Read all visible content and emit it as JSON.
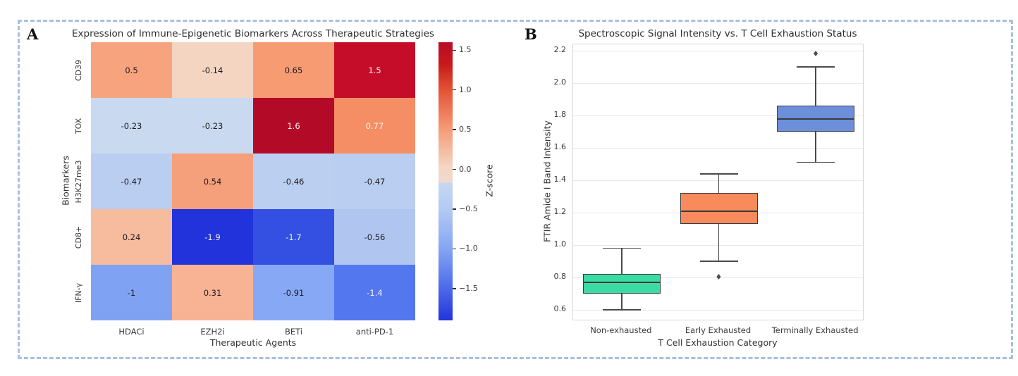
{
  "border_color": "#a9bfde",
  "panelA": {
    "label": "A",
    "title": "Expression of Immune-Epigenetic Biomarkers Across Therapeutic Strategies",
    "xlabel": "Therapeutic Agents",
    "ylabel": "Biomarkers",
    "colorbar_label": "Z-score"
  },
  "panelB": {
    "label": "B",
    "title": "Spectroscopic Signal Intensity vs. T Cell Exhaustion Status",
    "xlabel": "T Cell Exhaustion Category",
    "ylabel": "FTIR Amide I Band Intensity"
  },
  "chart_data": [
    {
      "type": "heatmap",
      "title": "Expression of Immune-Epigenetic Biomarkers Across Therapeutic Strategies",
      "xlabel": "Therapeutic Agents",
      "ylabel": "Biomarkers",
      "columns": [
        "HDACi",
        "EZH2i",
        "BETi",
        "anti-PD-1"
      ],
      "rows": [
        "CD39",
        "TOX",
        "H3K27me3",
        "CD8+",
        "IFN-γ"
      ],
      "values": [
        [
          0.5,
          -0.14,
          0.65,
          1.5
        ],
        [
          -0.23,
          -0.23,
          1.6,
          0.77
        ],
        [
          -0.47,
          0.54,
          -0.46,
          -0.47
        ],
        [
          0.24,
          -1.9,
          -1.7,
          -0.56
        ],
        [
          -1,
          0.31,
          -0.91,
          -1.4
        ]
      ],
      "value_labels": [
        [
          "0.5",
          "-0.14",
          "0.65",
          "1.5"
        ],
        [
          "-0.23",
          "-0.23",
          "1.6",
          "0.77"
        ],
        [
          "-0.47",
          "0.54",
          "-0.46",
          "-0.47"
        ],
        [
          "0.24",
          "-1.9",
          "-1.7",
          "-0.56"
        ],
        [
          "-1",
          "0.31",
          "-0.91",
          "-1.4"
        ]
      ],
      "cell_colors": [
        [
          "#f7a37d",
          "#f3d5c2",
          "#f79b72",
          "#c50d29"
        ],
        [
          "#c9d9f0",
          "#c9d9f0",
          "#b30b27",
          "#f58e64"
        ],
        [
          "#bacef1",
          "#f6a07b",
          "#bbcff1",
          "#bacef1"
        ],
        [
          "#f7bb9e",
          "#2233db",
          "#3350e2",
          "#b0c6f0"
        ],
        [
          "#7fa2f3",
          "#f8b294",
          "#87a8f4",
          "#5377ee"
        ]
      ],
      "cell_text_colors": [
        [
          "#1c1c1c",
          "#1c1c1c",
          "#1c1c1c",
          "#f2f2f2"
        ],
        [
          "#1c1c1c",
          "#1c1c1c",
          "#f2f2f2",
          "#f2f2f2"
        ],
        [
          "#1c1c1c",
          "#1c1c1c",
          "#1c1c1c",
          "#1c1c1c"
        ],
        [
          "#1c1c1c",
          "#f2f2f2",
          "#f2f2f2",
          "#1c1c1c"
        ],
        [
          "#1c1c1c",
          "#1c1c1c",
          "#1c1c1c",
          "#f2f2f2"
        ]
      ],
      "colorbar": {
        "label": "Z-score",
        "tick_labels": [
          "1.5",
          "1.0",
          "0.5",
          "0.0",
          "−0.5",
          "−1.0",
          "−1.5"
        ],
        "tick_values": [
          1.5,
          1.0,
          0.5,
          0.0,
          -0.5,
          -1.0,
          -1.5
        ],
        "vmin": -1.9,
        "vmax": 1.6,
        "gradient": [
          [
            0,
            "#b70c26"
          ],
          [
            8,
            "#c81a1b"
          ],
          [
            17,
            "#e25335"
          ],
          [
            31,
            "#f49a76"
          ],
          [
            45,
            "#f3d6c4"
          ],
          [
            50.4,
            "#f0d9cc"
          ],
          [
            50.6,
            "#c6d7f2"
          ],
          [
            60,
            "#b4caf3"
          ],
          [
            74,
            "#85a6f3"
          ],
          [
            88,
            "#4d6cea"
          ],
          [
            100,
            "#2333da"
          ]
        ]
      }
    },
    {
      "type": "boxplot",
      "title": "Spectroscopic Signal Intensity vs. T Cell Exhaustion Status",
      "xlabel": "T Cell Exhaustion Category",
      "ylabel": "FTIR Amide I Band Intensity",
      "categories": [
        "Non-exhausted",
        "Early Exhausted",
        "Terminally Exhausted"
      ],
      "ytick_labels": [
        "0.6",
        "0.8",
        "1.0",
        "1.2",
        "1.4",
        "1.6",
        "1.8",
        "2.0",
        "2.2"
      ],
      "ytick_values": [
        0.6,
        0.8,
        1.0,
        1.2,
        1.4,
        1.6,
        1.8,
        2.0,
        2.2
      ],
      "ylim": [
        0.53,
        2.24
      ],
      "grid": true,
      "boxes": [
        {
          "category": "Non-exhausted",
          "fill_color": "#3adca4",
          "whisker_low": 0.6,
          "q1": 0.7,
          "median": 0.77,
          "q3": 0.82,
          "whisker_high": 0.98,
          "outliers": []
        },
        {
          "category": "Early Exhausted",
          "fill_color": "#f88a5c",
          "whisker_low": 0.9,
          "q1": 1.13,
          "median": 1.21,
          "q3": 1.32,
          "whisker_high": 1.44,
          "outliers": [
            0.8
          ]
        },
        {
          "category": "Terminally Exhausted",
          "fill_color": "#6c8fdb",
          "whisker_low": 1.51,
          "q1": 1.7,
          "median": 1.78,
          "q3": 1.86,
          "whisker_high": 2.1,
          "outliers": [
            2.18
          ]
        }
      ]
    }
  ]
}
